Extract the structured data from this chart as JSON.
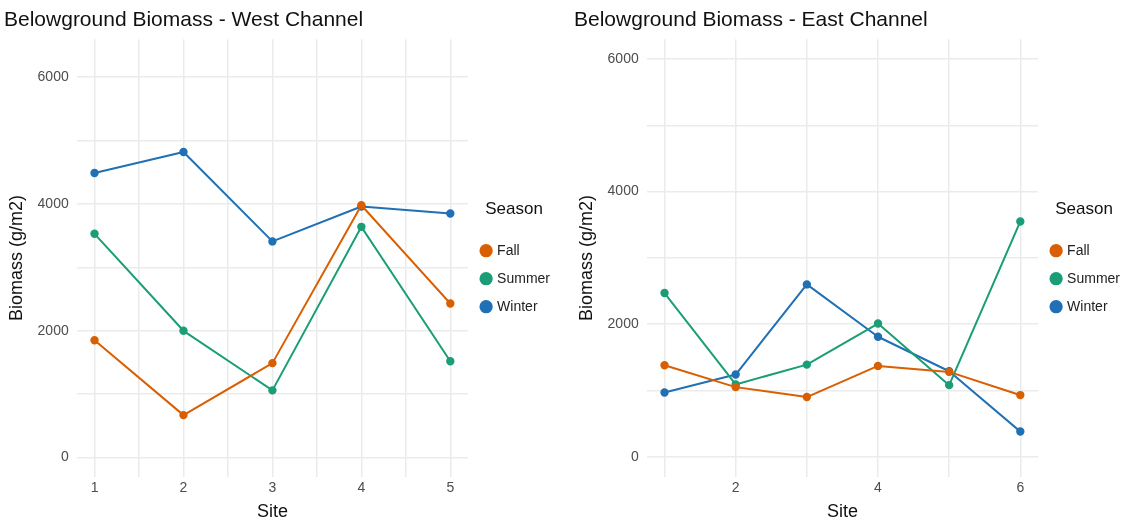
{
  "chart_data": [
    {
      "type": "line",
      "title": "Belowground Biomass - West Channel",
      "xlabel": "Site",
      "ylabel": "Biomass (g/m2)",
      "legend_title": "Season",
      "legend": "right",
      "grid": true,
      "marker": "circle",
      "line_style": "solid",
      "x": [
        1,
        2,
        3,
        4,
        5
      ],
      "xlim": [
        0.8,
        5.2
      ],
      "xticks": [
        1,
        {
          "value": 1.5,
          "label": null
        },
        2,
        {
          "value": 2.5,
          "label": null
        },
        3,
        {
          "value": 3.5,
          "label": null
        },
        4,
        {
          "value": 4.5,
          "label": null
        },
        5
      ],
      "ylim": [
        -300,
        6600
      ],
      "yticks": [
        0,
        {
          "value": 1000,
          "label": null
        },
        2000,
        {
          "value": 3000,
          "label": null
        },
        4000,
        {
          "value": 5000,
          "label": null
        },
        6000
      ],
      "series": [
        {
          "name": "Fall",
          "color": "#d95f02",
          "values": [
            1850,
            670,
            1490,
            3980,
            2430
          ]
        },
        {
          "name": "Summer",
          "color": "#1b9e77",
          "values": [
            3530,
            2000,
            1060,
            3640,
            1520
          ]
        },
        {
          "name": "Winter",
          "color": "#2170b5",
          "values": [
            4490,
            4820,
            3410,
            3960,
            3850
          ]
        }
      ]
    },
    {
      "type": "line",
      "title": "Belowground Biomass - East Channel",
      "xlabel": "Site",
      "ylabel": "Biomass (g/m2)",
      "legend_title": "Season",
      "legend": "right",
      "grid": true,
      "marker": "circle",
      "line_style": "solid",
      "x": [
        1,
        2,
        3,
        4,
        5,
        6
      ],
      "xlim": [
        0.75,
        6.25
      ],
      "xticks": [
        {
          "value": 1,
          "label": null
        },
        2,
        {
          "value": 3,
          "label": null
        },
        4,
        {
          "value": 5,
          "label": null
        },
        6
      ],
      "ylim": [
        -300,
        6300
      ],
      "yticks": [
        0,
        {
          "value": 1000,
          "label": null
        },
        2000,
        {
          "value": 3000,
          "label": null
        },
        4000,
        {
          "value": 5000,
          "label": null
        },
        6000
      ],
      "series": [
        {
          "name": "Fall",
          "color": "#d95f02",
          "values": [
            1380,
            1050,
            900,
            1370,
            1280,
            930
          ]
        },
        {
          "name": "Summer",
          "color": "#1b9e77",
          "values": [
            2470,
            1090,
            1390,
            2010,
            1080,
            3550
          ]
        },
        {
          "name": "Winter",
          "color": "#2170b5",
          "values": [
            970,
            1240,
            2600,
            1810,
            1290,
            380
          ]
        }
      ]
    }
  ]
}
